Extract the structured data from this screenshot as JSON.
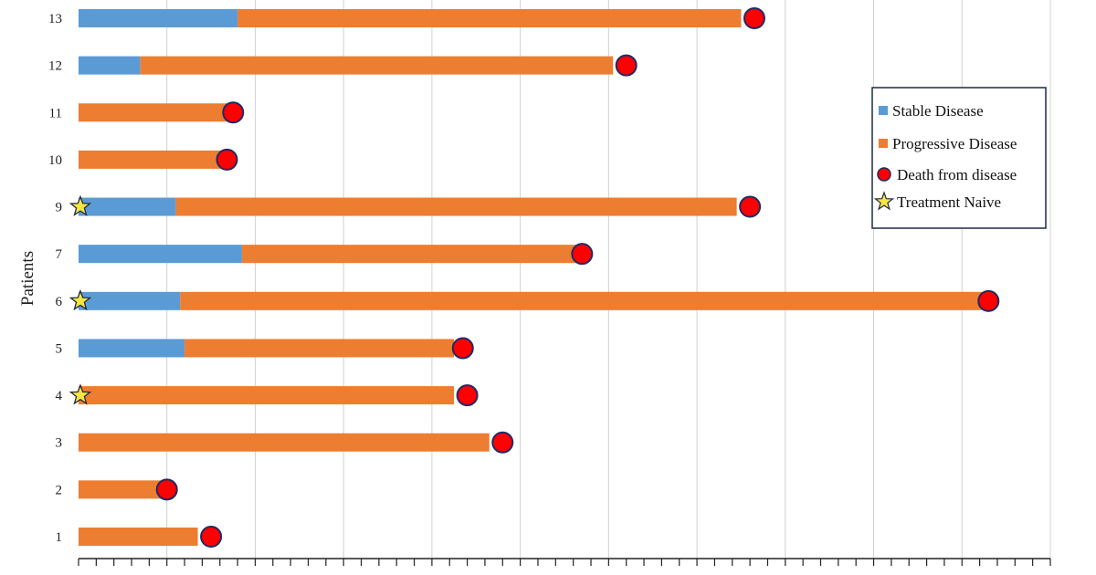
{
  "chart_data": {
    "type": "bar",
    "orientation": "horizontal",
    "stacked": true,
    "ylabel": "Patients",
    "xlabel": "",
    "xlim": [
      0,
      110
    ],
    "x_gridline_step": 10,
    "x_minor_tick_step": 2,
    "categories": [
      "1",
      "2",
      "3",
      "4",
      "5",
      "6",
      "7",
      "9",
      "10",
      "11",
      "12",
      "13"
    ],
    "series": [
      {
        "name": "Stable Disease",
        "color": "#5b9bd5",
        "values": [
          0,
          0,
          0,
          0,
          12,
          11.5,
          18.5,
          11,
          0,
          0,
          7,
          18
        ]
      },
      {
        "name": "Progressive Disease",
        "color": "#ed7d31",
        "values": [
          13.5,
          9.5,
          46.5,
          42.5,
          30.5,
          91.5,
          39,
          63.5,
          16.5,
          17,
          53.5,
          57
        ]
      }
    ],
    "markers": [
      {
        "name": "Death from disease",
        "color": "#ff0000",
        "x": [
          15,
          10,
          48,
          44,
          43.5,
          103,
          57,
          76,
          16.8,
          17.5,
          62,
          76.5
        ]
      },
      {
        "name": "Treatment Naive",
        "color": "#f5e642",
        "patients": [
          "9",
          "6",
          "4"
        ]
      }
    ],
    "legend": {
      "position": "right",
      "entries": [
        "Stable Disease",
        "Progressive Disease",
        "Death from disease",
        "Treatment Naive"
      ]
    },
    "grid": {
      "x": true,
      "y": false
    }
  }
}
